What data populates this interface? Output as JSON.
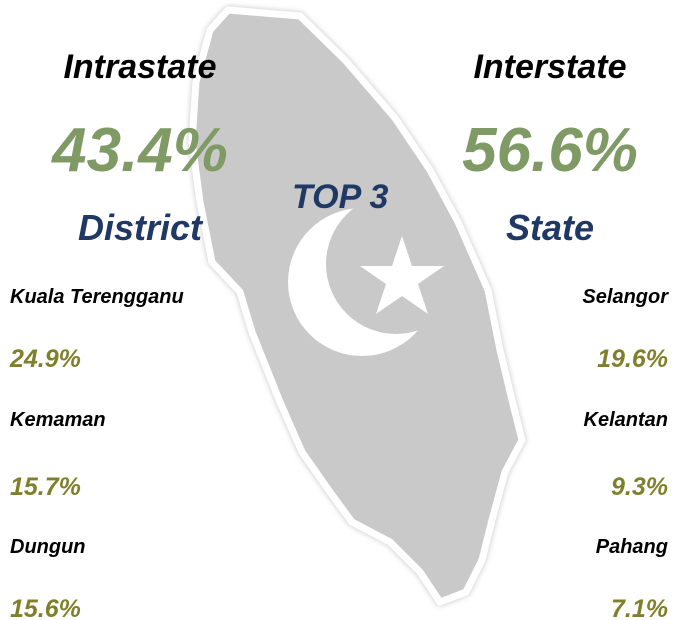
{
  "intrastate": {
    "title": "Intrastate",
    "share": "43.4%",
    "label": "District",
    "items": [
      {
        "name": "Kuala Terengganu",
        "share": "24.9%"
      },
      {
        "name": "Kemaman",
        "share": "15.7%"
      },
      {
        "name": "Dungun",
        "share": "15.6%"
      }
    ]
  },
  "center_label": "TOP 3",
  "interstate": {
    "title": "Interstate",
    "share": "56.6%",
    "label": "State",
    "items": [
      {
        "name": "Selangor",
        "share": "19.6%"
      },
      {
        "name": "Kelantan",
        "share": "9.3%"
      },
      {
        "name": "Pahang",
        "share": "7.1%"
      }
    ]
  }
}
